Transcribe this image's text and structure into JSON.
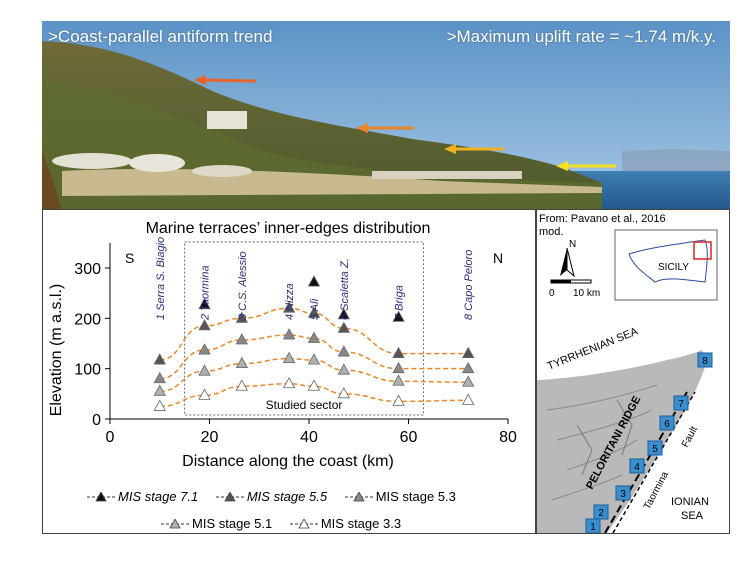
{
  "photo": {
    "caption_left": ">Coast-parallel antiform trend",
    "caption_right": ">Maximum uplift rate = ~1.74 m/k.y."
  },
  "chart_data": {
    "type": "line",
    "title": "Marine terraces’ inner-edges distribution",
    "xlabel": "Distance along the coast (km)",
    "ylabel": "Elevation (m a.s.l.)",
    "xlim": [
      0,
      80
    ],
    "ylim": [
      0,
      300
    ],
    "xticks": [
      0,
      20,
      40,
      60,
      80
    ],
    "yticks": [
      0,
      100,
      200,
      300
    ],
    "left_label": "S",
    "right_label": "N",
    "sector_label": "Studied sector",
    "sector_range": [
      15,
      63
    ],
    "sites": [
      {
        "label": "1 Serra S. Biagio",
        "x": 10
      },
      {
        "label": "2 Taormina",
        "x": 19
      },
      {
        "label": "3 C.S. Alessio",
        "x": 26.5
      },
      {
        "label": "4 Nizza",
        "x": 36
      },
      {
        "label": "5 Alì",
        "x": 41
      },
      {
        "label": "6 Scaletta Z.",
        "x": 47
      },
      {
        "label": "7 Briga",
        "x": 58
      },
      {
        "label": "8 Capo Peloro",
        "x": 72
      }
    ],
    "series": [
      {
        "name": "MIS stage 7.1",
        "italic": true,
        "color": "#111111",
        "x": [
          19,
          41,
          47,
          58
        ],
        "values": [
          227,
          272,
          207,
          202
        ]
      },
      {
        "name": "MIS stage 5.5",
        "italic": true,
        "color": "#555555",
        "x": [
          10,
          19,
          26.5,
          36,
          41,
          47,
          58,
          72
        ],
        "values": [
          117,
          185,
          200,
          220,
          210,
          180,
          130,
          130
        ]
      },
      {
        "name": "MIS stage 5.3",
        "italic": false,
        "color": "#888888",
        "x": [
          10,
          19,
          26.5,
          36,
          41,
          47,
          58,
          72
        ],
        "values": [
          80,
          137,
          157,
          167,
          160,
          133,
          100,
          100
        ]
      },
      {
        "name": "MIS stage 5.1",
        "italic": false,
        "color": "#b0b0b0",
        "x": [
          10,
          19,
          26.5,
          36,
          41,
          47,
          58,
          72
        ],
        "values": [
          55,
          95,
          110,
          120,
          117,
          97,
          75,
          73
        ]
      },
      {
        "name": "MIS stage 3.3",
        "italic": false,
        "color": "#ffffff",
        "x": [
          10,
          19,
          26.5,
          36,
          41,
          47,
          58,
          72
        ],
        "values": [
          25,
          47,
          65,
          70,
          65,
          50,
          35,
          37
        ]
      }
    ]
  },
  "map": {
    "source": "From: Pavano et al., 2016",
    "source_suffix": "mod.",
    "north": "N",
    "scale_start": "0",
    "scale_end": "10 km",
    "inset_label": "SICILY",
    "sea_north": "TYRRHENIAN SEA",
    "sea_south_1": "IONIAN",
    "sea_south_2": "SEA",
    "ridge": "PELORITANI RIDGE",
    "fault_1": "Taormina",
    "fault_2": "Fault",
    "site_numbers": [
      "1",
      "2",
      "3",
      "4",
      "5",
      "6",
      "7",
      "8"
    ],
    "accent": "#3a8fd0"
  }
}
